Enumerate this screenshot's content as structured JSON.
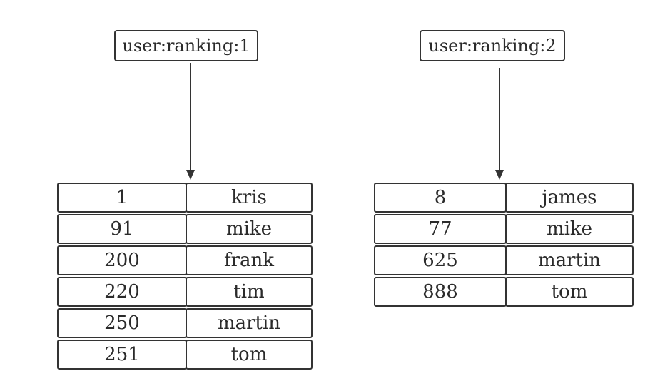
{
  "diagram": {
    "keys": [
      {
        "label": "user:ranking:1",
        "rows": [
          {
            "score": "1",
            "member": "kris"
          },
          {
            "score": "91",
            "member": "mike"
          },
          {
            "score": "200",
            "member": "frank"
          },
          {
            "score": "220",
            "member": "tim"
          },
          {
            "score": "250",
            "member": "martin"
          },
          {
            "score": "251",
            "member": "tom"
          }
        ]
      },
      {
        "label": "user:ranking:2",
        "rows": [
          {
            "score": "8",
            "member": "james"
          },
          {
            "score": "77",
            "member": "mike"
          },
          {
            "score": "625",
            "member": "martin"
          },
          {
            "score": "888",
            "member": "tom"
          }
        ]
      }
    ],
    "colors": {
      "stroke": "#333333",
      "text": "#2b2b2b",
      "background": "#ffffff"
    }
  }
}
